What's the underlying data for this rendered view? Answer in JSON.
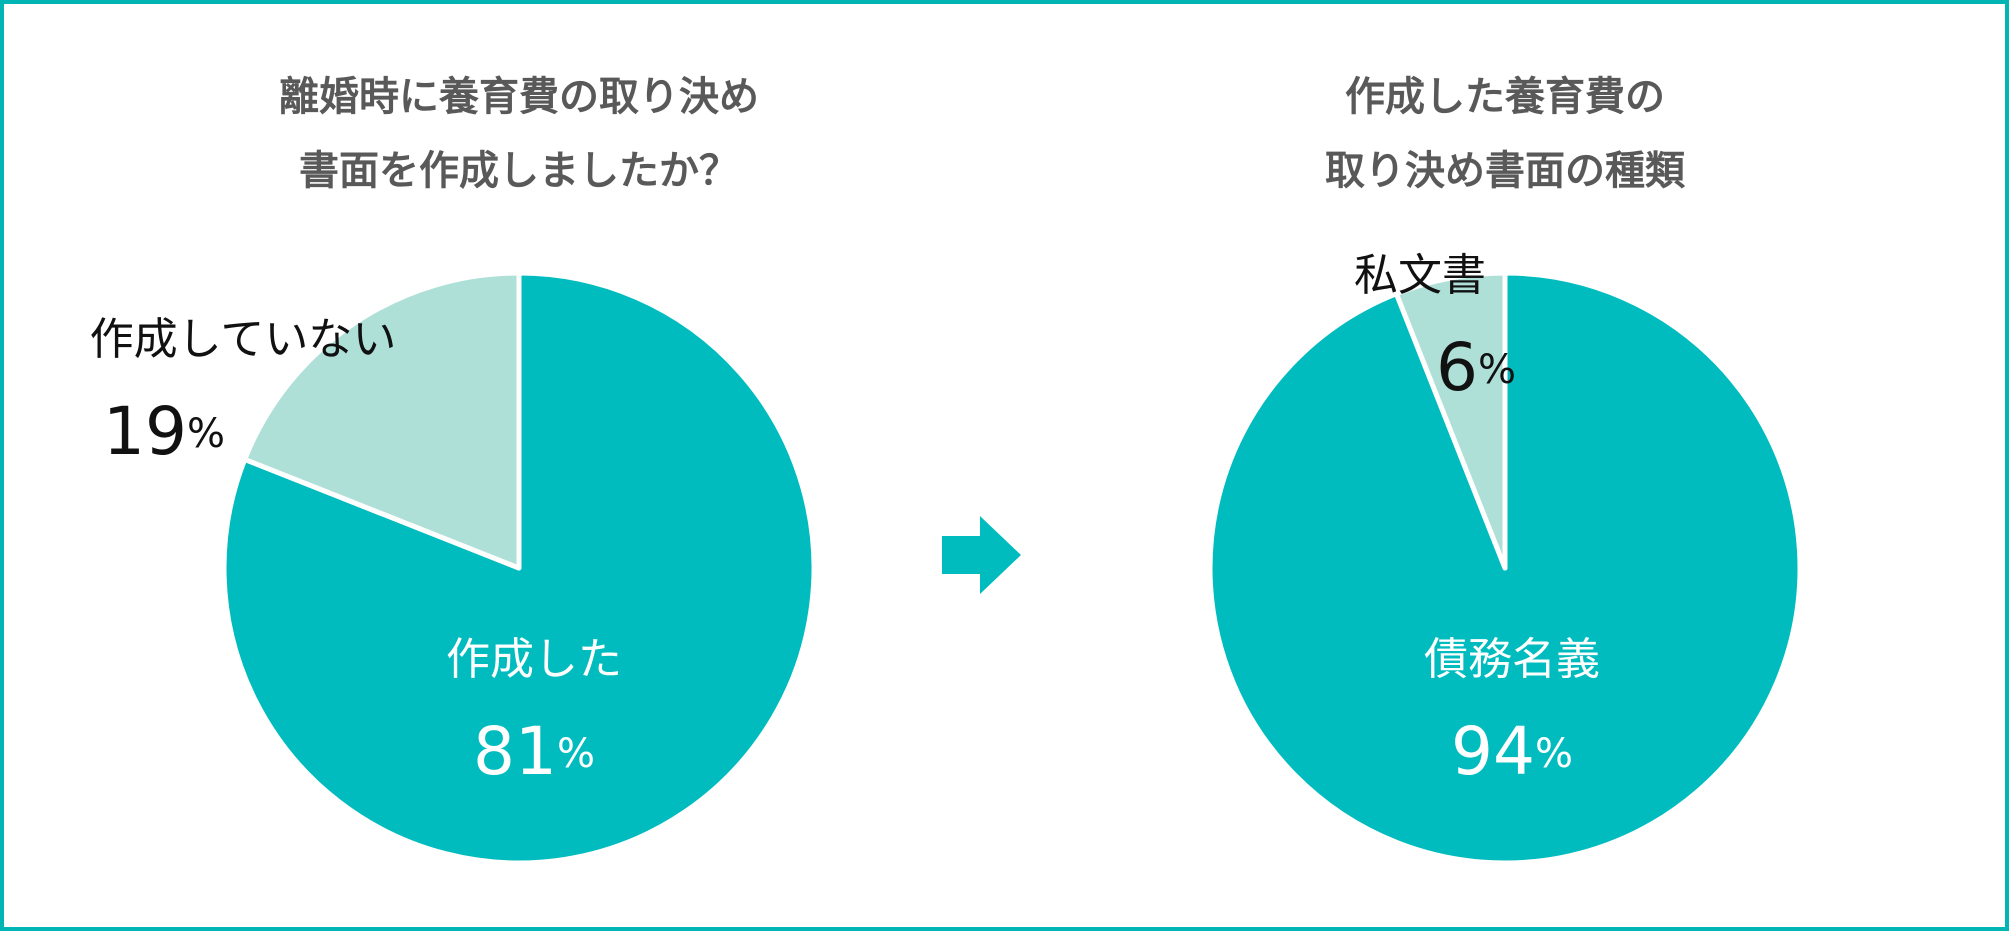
{
  "chart_data": [
    {
      "type": "pie",
      "title": [
        "離婚時に養育費の取り決め",
        "書面を作成しましたか？"
      ],
      "categories": [
        "作成した",
        "作成していない"
      ],
      "values": [
        81,
        19
      ],
      "value_labels": [
        "81%",
        "19%"
      ],
      "colors": [
        "#00bcbf",
        "#aee0d8"
      ]
    },
    {
      "type": "pie",
      "title": [
        "作成した養育費の",
        "取り決め書面の種類"
      ],
      "categories": [
        "債務名義",
        "私文書"
      ],
      "values": [
        94,
        6
      ],
      "value_labels": [
        "94%",
        "6%"
      ],
      "colors": [
        "#00bcbf",
        "#aee0d8"
      ]
    }
  ]
}
